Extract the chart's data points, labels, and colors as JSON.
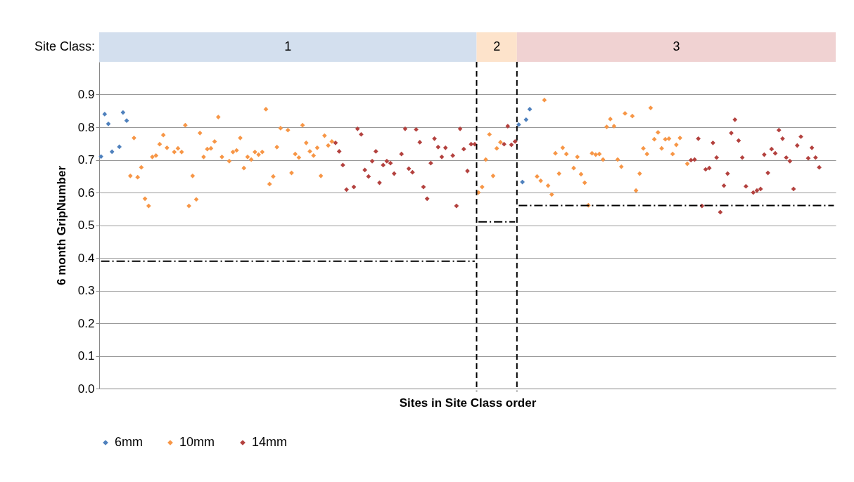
{
  "chart_data": {
    "type": "scatter",
    "xlabel": "Sites in Site Class order",
    "ylabel": "6 month GripNumber",
    "categories": [
      null,
      null,
      null,
      null,
      null,
      null,
      null,
      null,
      null,
      null,
      null,
      null,
      null,
      null,
      null,
      null,
      null,
      null,
      null,
      null,
      null,
      null,
      null,
      null,
      null,
      null,
      null,
      null,
      null,
      null,
      null,
      null,
      null,
      null,
      null,
      null,
      null,
      null,
      null,
      null,
      null,
      null,
      null,
      null,
      null,
      null,
      null,
      null,
      null,
      null,
      null,
      null,
      null,
      null,
      null,
      null,
      null,
      null,
      null,
      null,
      null,
      null,
      null,
      null,
      null,
      null,
      null,
      null,
      null,
      null,
      null,
      null,
      null,
      null,
      null,
      null,
      null,
      null,
      null,
      null,
      null,
      null,
      null,
      null,
      null,
      null,
      null,
      null,
      null,
      null,
      null,
      null,
      null,
      null,
      null,
      null,
      null,
      null,
      null,
      null,
      null,
      null,
      null,
      null,
      null,
      null,
      null,
      null,
      null,
      null,
      null,
      null,
      null,
      null,
      null,
      null,
      null,
      null,
      null,
      null,
      null,
      null,
      null,
      null,
      null,
      null,
      null,
      null,
      null,
      null,
      null,
      null,
      null,
      null,
      null,
      null,
      null,
      null,
      null,
      null,
      null,
      null,
      null,
      null,
      null,
      null,
      null,
      null,
      null,
      null,
      null,
      null,
      null,
      null,
      null,
      null,
      null,
      null,
      null,
      null,
      null,
      null,
      null,
      null,
      null,
      null,
      null,
      null,
      null,
      null,
      null,
      null,
      null,
      null,
      null,
      null,
      null,
      null,
      null,
      null,
      null,
      null,
      null,
      null,
      null,
      null,
      null,
      null,
      null,
      null,
      null,
      null,
      null,
      null,
      null,
      null,
      null,
      null,
      null,
      null,
      null
    ],
    "ylim": [
      0,
      1.0
    ],
    "yticks": [
      {
        "value": 0,
        "label": "0.0"
      },
      0.1,
      0.2,
      0.3,
      0.4,
      0.5,
      0.6,
      0.7,
      0.8,
      0.9
    ],
    "tick_labels": "y",
    "grid": "y",
    "legend": "bottom",
    "marker": "diamond",
    "annotations": [
      "Site Class:",
      "1",
      "2",
      "3"
    ],
    "series": [
      {
        "name": "6mm",
        "color": "#4f81bd",
        "values": [
          0.71,
          0.84,
          0.81,
          0.725,
          null,
          0.74,
          0.845,
          0.82,
          null,
          null,
          null,
          null,
          null,
          null,
          null,
          null,
          null,
          null,
          null,
          null,
          null,
          null,
          null,
          null,
          null,
          null,
          null,
          null,
          null,
          null,
          null,
          null,
          null,
          null,
          null,
          null,
          null,
          null,
          null,
          null,
          null,
          null,
          null,
          null,
          null,
          null,
          null,
          null,
          null,
          null,
          null,
          null,
          null,
          null,
          null,
          null,
          null,
          null,
          null,
          null,
          null,
          null,
          null,
          null,
          null,
          null,
          null,
          null,
          null,
          null,
          null,
          null,
          null,
          null,
          null,
          null,
          null,
          null,
          null,
          null,
          null,
          null,
          null,
          null,
          null,
          null,
          null,
          null,
          null,
          null,
          null,
          null,
          null,
          null,
          null,
          null,
          null,
          null,
          null,
          null,
          null,
          null,
          null,
          null,
          null,
          null,
          null,
          null,
          null,
          null,
          null,
          null,
          null,
          null,
          0.808,
          0.632,
          0.823,
          0.855,
          null,
          null,
          null,
          null,
          null,
          null,
          null,
          null,
          null,
          null,
          null,
          null,
          null,
          null,
          null,
          null,
          null,
          null,
          null,
          null,
          null,
          null,
          null,
          null,
          null,
          null,
          null,
          null,
          null,
          null,
          null,
          null,
          null,
          null,
          null,
          null,
          null,
          null,
          null,
          null,
          null,
          null,
          null,
          null,
          null,
          null,
          null,
          null,
          null,
          null,
          null,
          null,
          null,
          null,
          null,
          null,
          null,
          null,
          null,
          null,
          null,
          null,
          null,
          null,
          null,
          null,
          null,
          null,
          null,
          null,
          null,
          null,
          null,
          null,
          null,
          null,
          null,
          null,
          null,
          null,
          null,
          null,
          null
        ]
      },
      {
        "name": "10mm",
        "color": "#f79646",
        "values": [
          null,
          null,
          null,
          null,
          null,
          null,
          null,
          null,
          0.651,
          0.767,
          0.647,
          0.677,
          0.581,
          0.559,
          0.709,
          0.713,
          0.748,
          0.776,
          0.737,
          null,
          0.724,
          0.735,
          0.724,
          0.806,
          0.559,
          0.651,
          0.579,
          0.782,
          0.709,
          0.733,
          0.735,
          0.756,
          0.831,
          0.709,
          null,
          0.696,
          0.724,
          0.729,
          0.767,
          0.675,
          0.709,
          0.701,
          0.724,
          0.716,
          0.724,
          0.855,
          0.626,
          0.649,
          0.739,
          0.797,
          null,
          0.791,
          0.66,
          0.718,
          0.707,
          0.806,
          0.752,
          0.726,
          0.713,
          0.737,
          0.651,
          0.774,
          0.744,
          0.756,
          null,
          null,
          null,
          null,
          null,
          null,
          null,
          null,
          null,
          null,
          null,
          null,
          null,
          null,
          null,
          null,
          null,
          null,
          null,
          null,
          null,
          null,
          null,
          null,
          null,
          null,
          null,
          null,
          null,
          null,
          null,
          null,
          null,
          null,
          null,
          null,
          null,
          null,
          null,
          0.6,
          0.617,
          0.701,
          0.778,
          0.651,
          0.735,
          0.754,
          null,
          null,
          null,
          null,
          null,
          null,
          null,
          null,
          null,
          0.649,
          0.636,
          0.883,
          0.621,
          0.594,
          0.72,
          0.658,
          0.737,
          0.718,
          null,
          0.675,
          0.709,
          0.656,
          0.63,
          0.561,
          0.72,
          0.716,
          0.718,
          0.701,
          0.801,
          0.825,
          0.803,
          0.701,
          0.679,
          0.842,
          null,
          0.834,
          0.606,
          0.658,
          0.735,
          0.718,
          0.859,
          0.763,
          0.784,
          0.735,
          0.763,
          0.765,
          0.718,
          0.746,
          0.767,
          null,
          0.688,
          null,
          null,
          null,
          null,
          null,
          null,
          null,
          null,
          null,
          null,
          null,
          null,
          null,
          null,
          null,
          null,
          null,
          null,
          null,
          null,
          null,
          null,
          null,
          null,
          null,
          null,
          null,
          null,
          null,
          null,
          null,
          null,
          null,
          null,
          null,
          null,
          null,
          null,
          null,
          null
        ]
      },
      {
        "name": "14mm",
        "color": "#b3413e",
        "values": [
          null,
          null,
          null,
          null,
          null,
          null,
          null,
          null,
          null,
          null,
          null,
          null,
          null,
          null,
          null,
          null,
          null,
          null,
          null,
          null,
          null,
          null,
          null,
          null,
          null,
          null,
          null,
          null,
          null,
          null,
          null,
          null,
          null,
          null,
          null,
          null,
          null,
          null,
          null,
          null,
          null,
          null,
          null,
          null,
          null,
          null,
          null,
          null,
          null,
          null,
          null,
          null,
          null,
          null,
          null,
          null,
          null,
          null,
          null,
          null,
          null,
          null,
          null,
          null,
          0.752,
          0.726,
          0.684,
          0.609,
          null,
          0.617,
          0.795,
          0.778,
          0.669,
          0.649,
          0.696,
          0.726,
          0.63,
          0.684,
          0.696,
          0.69,
          0.658,
          null,
          0.718,
          0.795,
          0.673,
          0.662,
          0.793,
          0.754,
          0.617,
          0.581,
          0.69,
          0.765,
          0.739,
          0.709,
          0.737,
          null,
          0.713,
          0.559,
          0.795,
          0.733,
          0.666,
          0.748,
          0.748,
          null,
          null,
          null,
          null,
          null,
          null,
          null,
          0.748,
          0.803,
          0.746,
          0.756,
          null,
          null,
          null,
          null,
          null,
          null,
          null,
          null,
          null,
          null,
          null,
          null,
          null,
          null,
          null,
          null,
          null,
          null,
          null,
          null,
          null,
          null,
          null,
          null,
          null,
          null,
          null,
          null,
          null,
          null,
          null,
          null,
          null,
          null,
          null,
          null,
          null,
          null,
          null,
          null,
          null,
          null,
          null,
          null,
          null,
          null,
          null,
          0.699,
          0.701,
          0.765,
          0.559,
          0.671,
          0.675,
          0.752,
          0.707,
          0.54,
          0.621,
          0.658,
          0.782,
          0.823,
          0.759,
          0.707,
          0.619,
          null,
          0.6,
          0.606,
          0.611,
          0.716,
          0.66,
          0.733,
          0.72,
          0.791,
          0.765,
          0.707,
          0.696,
          0.611,
          0.744,
          0.771,
          null,
          0.705,
          0.737,
          0.707,
          0.677,
          null,
          null,
          null,
          null
        ]
      },
      {
        "type": "line",
        "color": "#000000",
        "line_style": "dashed",
        "marker": "none",
        "values": [
          0.39,
          0.39,
          0.39,
          0.39,
          0.39,
          0.39,
          0.39,
          0.39,
          0.39,
          0.39,
          0.39,
          0.39,
          0.39,
          0.39,
          0.39,
          0.39,
          0.39,
          0.39,
          0.39,
          0.39,
          0.39,
          0.39,
          0.39,
          0.39,
          0.39,
          0.39,
          0.39,
          0.39,
          0.39,
          0.39,
          0.39,
          0.39,
          0.39,
          0.39,
          0.39,
          0.39,
          0.39,
          0.39,
          0.39,
          0.39,
          0.39,
          0.39,
          0.39,
          0.39,
          0.39,
          0.39,
          0.39,
          0.39,
          0.39,
          0.39,
          0.39,
          0.39,
          0.39,
          0.39,
          0.39,
          0.39,
          0.39,
          0.39,
          0.39,
          0.39,
          0.39,
          0.39,
          0.39,
          0.39,
          0.39,
          0.39,
          0.39,
          0.39,
          0.39,
          0.39,
          0.39,
          0.39,
          0.39,
          0.39,
          0.39,
          0.39,
          0.39,
          0.39,
          0.39,
          0.39,
          0.39,
          0.39,
          0.39,
          0.39,
          0.39,
          0.39,
          0.39,
          0.39,
          0.39,
          0.39,
          0.39,
          0.39,
          0.39,
          0.39,
          0.39,
          0.39,
          0.39,
          0.39,
          0.39,
          0.39,
          0.39,
          0.39,
          0.39,
          null,
          null,
          null,
          null,
          null,
          null,
          null,
          null,
          null,
          null,
          null,
          null,
          null,
          null,
          null,
          null,
          null,
          null,
          null,
          null,
          null,
          null,
          null,
          null,
          null,
          null,
          null,
          null,
          null,
          null,
          null,
          null,
          null,
          null,
          null,
          null,
          null,
          null,
          null,
          null,
          null,
          null,
          null,
          null,
          null,
          null,
          null,
          null,
          null,
          null,
          null,
          null,
          null,
          null,
          null,
          null,
          null,
          null,
          null,
          null,
          null,
          null,
          null,
          null,
          null,
          null,
          null,
          null,
          null,
          null,
          null,
          null,
          null,
          null,
          null,
          null,
          null,
          null,
          null,
          null,
          null,
          null,
          null,
          null,
          null,
          null,
          null,
          null,
          null,
          null,
          null,
          null,
          null,
          null,
          null,
          null,
          null,
          null
        ]
      },
      {
        "type": "line",
        "color": "#000000",
        "line_style": "dashed",
        "marker": "none",
        "values": [
          null,
          null,
          null,
          null,
          null,
          null,
          null,
          null,
          null,
          null,
          null,
          null,
          null,
          null,
          null,
          null,
          null,
          null,
          null,
          null,
          null,
          null,
          null,
          null,
          null,
          null,
          null,
          null,
          null,
          null,
          null,
          null,
          null,
          null,
          null,
          null,
          null,
          null,
          null,
          null,
          null,
          null,
          null,
          null,
          null,
          null,
          null,
          null,
          null,
          null,
          null,
          null,
          null,
          null,
          null,
          null,
          null,
          null,
          null,
          null,
          null,
          null,
          null,
          null,
          null,
          null,
          null,
          null,
          null,
          null,
          null,
          null,
          null,
          null,
          null,
          null,
          null,
          null,
          null,
          null,
          null,
          null,
          null,
          null,
          null,
          null,
          null,
          null,
          null,
          null,
          null,
          null,
          null,
          null,
          null,
          null,
          null,
          null,
          null,
          null,
          null,
          null,
          null,
          0.51,
          0.51,
          0.51,
          0.51,
          0.51,
          0.51,
          0.51,
          0.51,
          0.51,
          0.51,
          0.51,
          null,
          null,
          null,
          null,
          null,
          null,
          null,
          null,
          null,
          null,
          null,
          null,
          null,
          null,
          null,
          null,
          null,
          null,
          null,
          null,
          null,
          null,
          null,
          null,
          null,
          null,
          null,
          null,
          null,
          null,
          null,
          null,
          null,
          null,
          null,
          null,
          null,
          null,
          null,
          null,
          null,
          null,
          null,
          null,
          null,
          null,
          null,
          null,
          null,
          null,
          null,
          null,
          null,
          null,
          null,
          null,
          null,
          null,
          null,
          null,
          null,
          null,
          null,
          null,
          null,
          null,
          null,
          null,
          null,
          null,
          null,
          null,
          null,
          null,
          null,
          null,
          null,
          null,
          null,
          null,
          null,
          null,
          null,
          null,
          null,
          null,
          null
        ]
      },
      {
        "type": "line",
        "color": "#000000",
        "line_style": "dashed",
        "marker": "none",
        "values": [
          null,
          null,
          null,
          null,
          null,
          null,
          null,
          null,
          null,
          null,
          null,
          null,
          null,
          null,
          null,
          null,
          null,
          null,
          null,
          null,
          null,
          null,
          null,
          null,
          null,
          null,
          null,
          null,
          null,
          null,
          null,
          null,
          null,
          null,
          null,
          null,
          null,
          null,
          null,
          null,
          null,
          null,
          null,
          null,
          null,
          null,
          null,
          null,
          null,
          null,
          null,
          null,
          null,
          null,
          null,
          null,
          null,
          null,
          null,
          null,
          null,
          null,
          null,
          null,
          null,
          null,
          null,
          null,
          null,
          null,
          null,
          null,
          null,
          null,
          null,
          null,
          null,
          null,
          null,
          null,
          null,
          null,
          null,
          null,
          null,
          null,
          null,
          null,
          null,
          null,
          null,
          null,
          null,
          null,
          null,
          null,
          null,
          null,
          null,
          null,
          null,
          null,
          null,
          null,
          null,
          null,
          null,
          null,
          null,
          null,
          null,
          null,
          null,
          null,
          0.56,
          0.56,
          0.56,
          0.56,
          0.56,
          0.56,
          0.56,
          0.56,
          0.56,
          0.56,
          0.56,
          0.56,
          0.56,
          0.56,
          0.56,
          0.56,
          0.56,
          0.56,
          0.56,
          0.56,
          0.56,
          0.56,
          0.56,
          0.56,
          0.56,
          0.56,
          0.56,
          0.56,
          0.56,
          0.56,
          0.56,
          0.56,
          0.56,
          0.56,
          0.56,
          0.56,
          0.56,
          0.56,
          0.56,
          0.56,
          0.56,
          0.56,
          0.56,
          0.56,
          0.56,
          0.56,
          0.56,
          0.56,
          0.56,
          0.56,
          0.56,
          0.56,
          0.56,
          0.56,
          0.56,
          0.56,
          0.56,
          0.56,
          0.56,
          0.56,
          0.56,
          0.56,
          0.56,
          0.56,
          0.56,
          0.56,
          0.56,
          0.56,
          0.56,
          0.56,
          0.56,
          0.56,
          0.56,
          0.56,
          0.56,
          0.56,
          0.56,
          0.56,
          0.56,
          0.56,
          0.56,
          0.56,
          0.56,
          0.56,
          0.56,
          0.56,
          0.56
        ]
      }
    ]
  }
}
